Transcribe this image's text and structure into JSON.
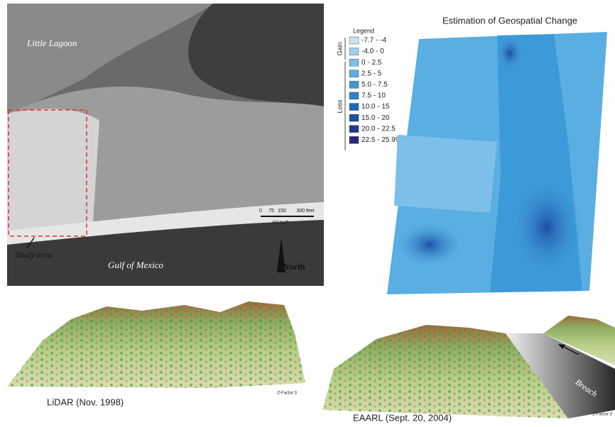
{
  "aerial_photo": {
    "labels": {
      "little_lagoon": "Little Lagoon",
      "study_area": "Study area",
      "gulf_of_mexico": "Gulf of Mexico",
      "north": "North"
    },
    "scale": {
      "ticks": [
        "0",
        "75",
        "150",
        "300 feet"
      ],
      "label": "SCALE"
    }
  },
  "legend": {
    "title": "Legend",
    "groups": [
      {
        "label": "Gain"
      },
      {
        "label": "Loss"
      }
    ],
    "items": [
      {
        "label": "-7.7 - -4",
        "color": "#c6e4f5"
      },
      {
        "label": "-4.0 - 0",
        "color": "#9fd0ee"
      },
      {
        "label": "0 - 2.5",
        "color": "#7cbfe8"
      },
      {
        "label": "2.5 - 5",
        "color": "#5aaee1"
      },
      {
        "label": "5.0 - 7.5",
        "color": "#3d9ad8"
      },
      {
        "label": "7.5 - 10",
        "color": "#2a83cb"
      },
      {
        "label": "10.0 - 15",
        "color": "#1f68b8"
      },
      {
        "label": "15.0 - 20",
        "color": "#1f4fa4"
      },
      {
        "label": "20.0 - 22.5",
        "color": "#23378f"
      },
      {
        "label": "22.5 - 25.99",
        "color": "#2a2478"
      }
    ]
  },
  "change_map": {
    "title": "Estimation of Geospatial Change"
  },
  "panels": [
    {
      "caption": "LiDAR  (Nov. 1998)",
      "z_factor": "Z-Factor:3"
    },
    {
      "caption": "EAARL (Sept. 20, 2004)",
      "z_factor": "Z-Factor:3",
      "annotation": "Breach"
    }
  ]
}
